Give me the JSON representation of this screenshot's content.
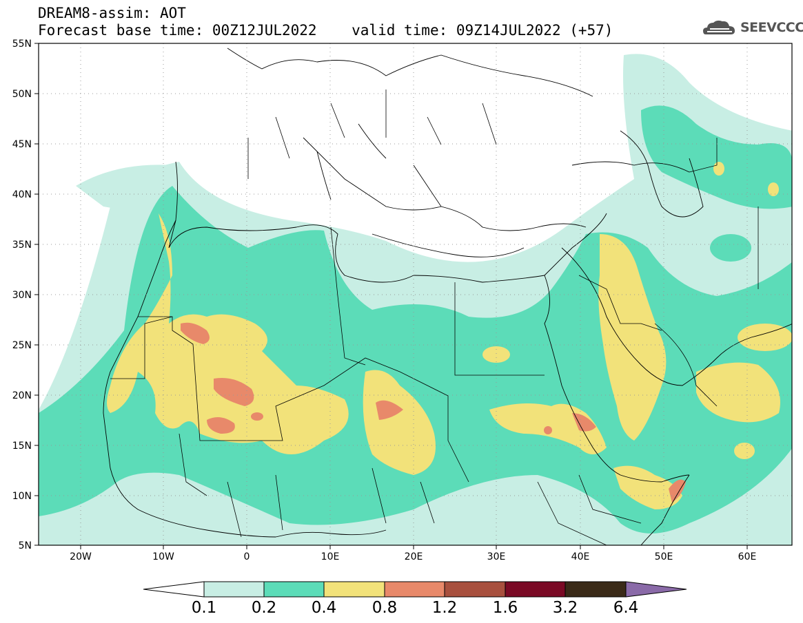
{
  "header": {
    "line1": "DREAM8-assim: AOT",
    "line2": "Forecast base time: 00Z12JUL2022    valid time: 09Z14JUL2022 (+57)"
  },
  "logo": {
    "text": "SEEVCCC",
    "icon": "cloud-icon"
  },
  "map": {
    "projection": "lat-lon",
    "lon_range": [
      -25,
      65
    ],
    "lat_range": [
      5,
      55
    ],
    "lat_ticks": [
      "55N",
      "50N",
      "45N",
      "40N",
      "35N",
      "30N",
      "25N",
      "20N",
      "15N",
      "10N",
      "5N"
    ],
    "lon_ticks": [
      "20W",
      "10W",
      "0",
      "10E",
      "20E",
      "30E",
      "40E",
      "50E",
      "60E"
    ],
    "grid": "dotted"
  },
  "colorbar": {
    "labels": [
      "0.1",
      "0.2",
      "0.4",
      "0.8",
      "1.2",
      "1.6",
      "3.2",
      "6.4"
    ],
    "colors": [
      "#ffffff",
      "#c8eee4",
      "#5cdcb8",
      "#f2e27a",
      "#e8896a",
      "#a8503e",
      "#7a0a25",
      "#3a2a18",
      "#8a6aa8"
    ]
  },
  "colors": {
    "aot_0_1": "#c8eee4",
    "aot_0_2": "#5cdcb8",
    "aot_0_4": "#f2e27a",
    "aot_0_8": "#e8896a"
  }
}
